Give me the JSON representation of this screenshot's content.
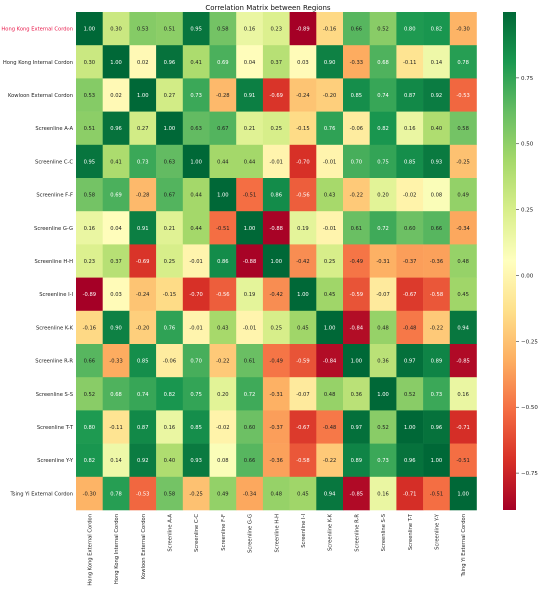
{
  "chart_data": {
    "type": "heatmap",
    "title": "Correlation Matrix between Regions",
    "rows": [
      "Hong Kong External Cordon",
      "Hong Kong Internal Cordon",
      "Kowloon External Cordon",
      "Screenline A-A",
      "Screenline C-C",
      "Screenline F-F",
      "Screenline G-G",
      "Screenline H-H",
      "Screenline I-I",
      "Screenline K-K",
      "Screenline R-R",
      "Screenline S-S",
      "Screenline T-T",
      "Screenline Y-Y",
      "Tsing Yi External Cordon"
    ],
    "columns": [
      "Hong Kong External Cordon",
      "Hong Kong Internal Cordon",
      "Kowloon External Cordon",
      "Screenline A-A",
      "Screenline C-C",
      "Screenline F-F",
      "Screenline G-G",
      "Screenline H-H",
      "Screenline I-I",
      "Screenline K-K",
      "Screenline R-R",
      "Screenline S-S",
      "Screenline T-T",
      "Screenline Y-Y",
      "Tsing Yi External Cordon"
    ],
    "values": [
      [
        1.0,
        0.3,
        0.53,
        0.51,
        0.95,
        0.58,
        0.16,
        0.23,
        -0.89,
        -0.16,
        0.66,
        0.52,
        0.8,
        0.82,
        -0.3
      ],
      [
        0.3,
        1.0,
        0.02,
        0.96,
        0.41,
        0.69,
        0.04,
        0.37,
        0.03,
        0.9,
        -0.33,
        0.68,
        -0.11,
        0.14,
        0.78
      ],
      [
        0.53,
        0.02,
        1.0,
        0.27,
        0.73,
        -0.28,
        0.91,
        -0.69,
        -0.24,
        -0.2,
        0.85,
        0.74,
        0.87,
        0.92,
        -0.53
      ],
      [
        0.51,
        0.96,
        0.27,
        1.0,
        0.63,
        0.67,
        0.21,
        0.25,
        -0.15,
        0.76,
        -0.06,
        0.82,
        0.16,
        0.4,
        0.58
      ],
      [
        0.95,
        0.41,
        0.73,
        0.63,
        1.0,
        0.44,
        0.44,
        -0.01,
        -0.7,
        -0.01,
        0.7,
        0.75,
        0.85,
        0.93,
        -0.25
      ],
      [
        0.58,
        0.69,
        -0.28,
        0.67,
        0.44,
        1.0,
        -0.51,
        0.86,
        -0.56,
        0.43,
        -0.22,
        0.2,
        -0.02,
        0.08,
        0.49
      ],
      [
        0.16,
        0.04,
        0.91,
        0.21,
        0.44,
        -0.51,
        1.0,
        -0.88,
        0.19,
        -0.01,
        0.61,
        0.72,
        0.6,
        0.66,
        -0.34
      ],
      [
        0.23,
        0.37,
        -0.69,
        0.25,
        -0.01,
        0.86,
        -0.88,
        1.0,
        -0.42,
        0.25,
        -0.49,
        -0.31,
        -0.37,
        -0.36,
        0.48
      ],
      [
        -0.89,
        0.03,
        -0.24,
        -0.15,
        -0.7,
        -0.56,
        0.19,
        -0.42,
        1.0,
        0.45,
        -0.59,
        -0.07,
        -0.67,
        -0.58,
        0.45
      ],
      [
        -0.16,
        0.9,
        -0.2,
        0.76,
        -0.01,
        0.43,
        -0.01,
        0.25,
        0.45,
        1.0,
        -0.84,
        0.48,
        -0.48,
        -0.22,
        0.94
      ],
      [
        0.66,
        -0.33,
        0.85,
        -0.06,
        0.7,
        -0.22,
        0.61,
        -0.49,
        -0.59,
        -0.84,
        1.0,
        0.36,
        0.97,
        0.89,
        -0.85
      ],
      [
        0.52,
        0.68,
        0.74,
        0.82,
        0.75,
        0.2,
        0.72,
        -0.31,
        -0.07,
        0.48,
        0.36,
        1.0,
        0.52,
        0.73,
        0.16
      ],
      [
        0.8,
        -0.11,
        0.87,
        0.16,
        0.85,
        -0.02,
        0.6,
        -0.37,
        -0.67,
        -0.48,
        0.97,
        0.52,
        1.0,
        0.96,
        -0.71
      ],
      [
        0.82,
        0.14,
        0.92,
        0.4,
        0.93,
        0.08,
        0.66,
        -0.36,
        -0.58,
        -0.22,
        0.89,
        0.73,
        0.96,
        1.0,
        -0.51
      ],
      [
        -0.3,
        0.78,
        -0.53,
        0.58,
        -0.25,
        0.49,
        -0.34,
        0.48,
        0.45,
        0.94,
        -0.85,
        0.16,
        -0.71,
        -0.51,
        1.0
      ]
    ],
    "value_format": "2 decimals",
    "colormap": "RdYlGn",
    "vmin": -0.89,
    "vmax": 1.0,
    "colorbar_ticks": [
      -0.75,
      -0.5,
      -0.25,
      0.0,
      0.25,
      0.5,
      0.75
    ],
    "colorbar_tick_labels": [
      "−0.75",
      "−0.50",
      "−0.25",
      "0.00",
      "0.25",
      "0.50",
      "0.75"
    ],
    "colorbar_placement": "right",
    "grid": false,
    "highlight_color": "#e8194a"
  }
}
